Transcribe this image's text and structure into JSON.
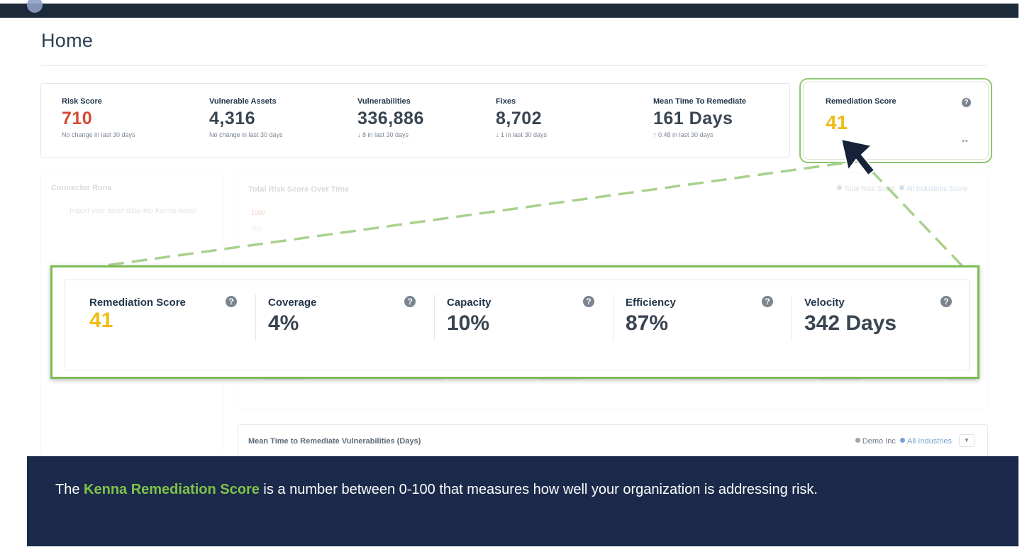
{
  "header": {
    "page_title": "Home"
  },
  "stats": [
    {
      "label": "Risk Score",
      "value": "710",
      "sub": "No change in last 30 days"
    },
    {
      "label": "Vulnerable Assets",
      "value": "4,316",
      "sub": "No change in last 30 days"
    },
    {
      "label": "Vulnerabilities",
      "value": "336,886",
      "sub": "↓ 8 in last 30 days"
    },
    {
      "label": "Fixes",
      "value": "8,702",
      "sub": "↓ 1 in last 30 days"
    },
    {
      "label": "Mean Time To Remediate",
      "value": "161 Days",
      "sub": "↑ 0.48 in last 30 days"
    }
  ],
  "remediation_card": {
    "label": "Remediation Score",
    "value": "41",
    "help_glyph": "?",
    "expand_glyph": "↔"
  },
  "connector_runs": {
    "title": "Connector Runs",
    "message": "Import your asset data into Kenna today!"
  },
  "risk_chart": {
    "title": "Total Risk Score Over Time",
    "legend_1": "Total Risk Score",
    "legend_2": "All Industries Score",
    "axis_1": "1000",
    "axis_2": "750"
  },
  "mttr_chart": {
    "title": "Mean Time to Remediate Vulnerabilities (Days)",
    "legend_1": "Demo Inc",
    "legend_2": "All Industries"
  },
  "zoom_metrics": [
    {
      "label": "Remediation Score",
      "value": "41"
    },
    {
      "label": "Coverage",
      "value": "4%"
    },
    {
      "label": "Capacity",
      "value": "10%"
    },
    {
      "label": "Efficiency",
      "value": "87%"
    },
    {
      "label": "Velocity",
      "value": "342 Days"
    }
  ],
  "footer": {
    "prefix": "The ",
    "highlight": "Kenna Remediation Score",
    "suffix": " is a number between 0-100 that measures how well your organization is addressing risk."
  },
  "colors": {
    "accent_green": "#7cbc56",
    "score_gold": "#f0bc17",
    "risk_red": "#d64a34",
    "footer_navy": "#1b2a4a"
  },
  "icons": {
    "help": "help-icon",
    "expand": "expand-icon",
    "pointer": "cursor-arrow-icon",
    "dropdown": "chevron-down-icon"
  }
}
